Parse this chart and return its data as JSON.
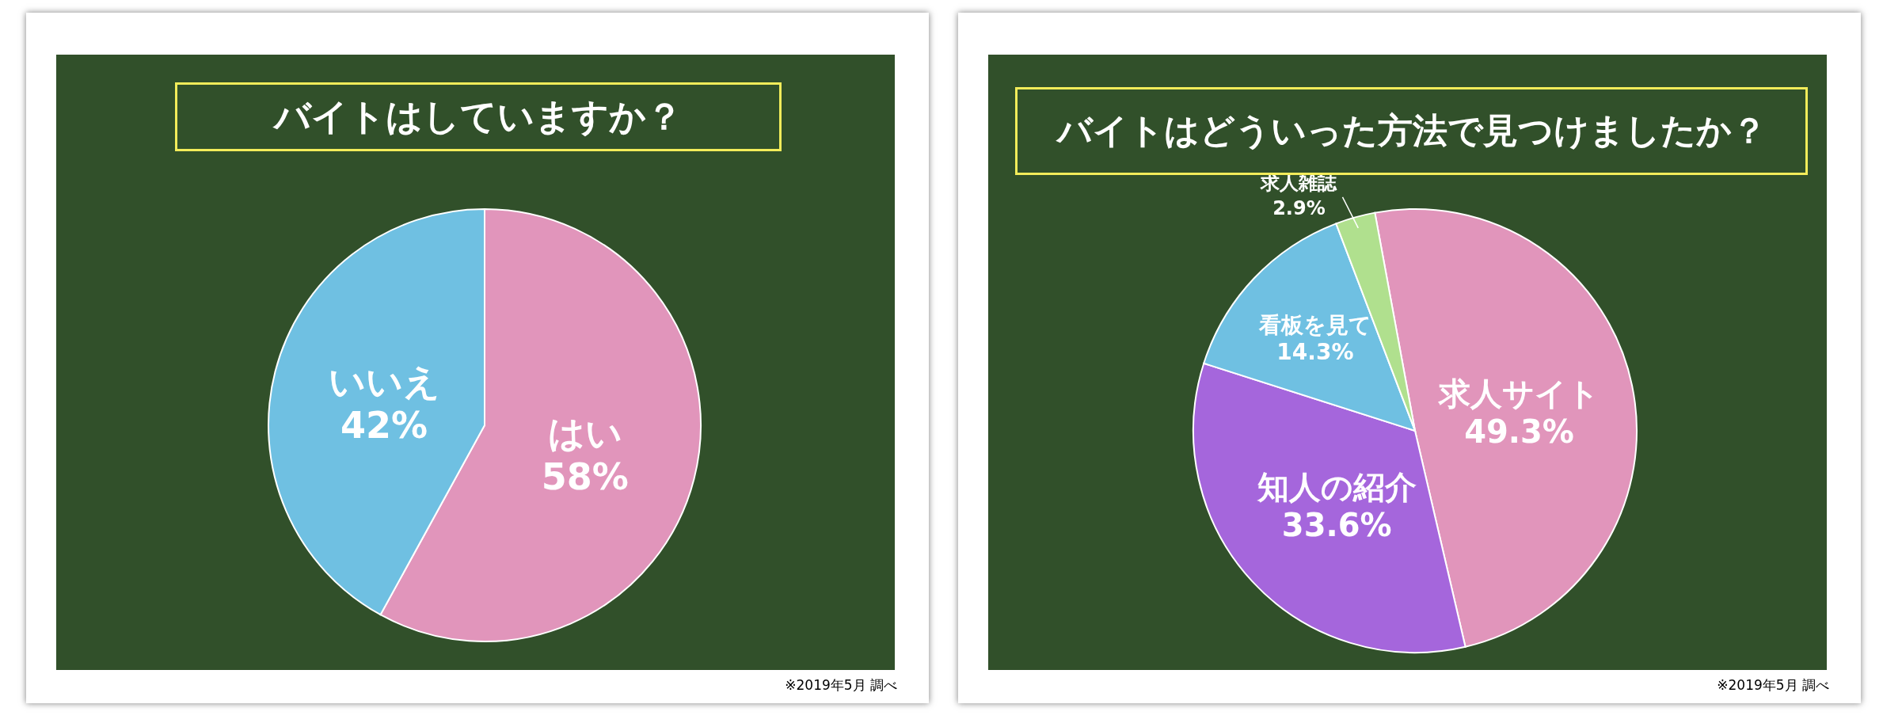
{
  "chart_data": [
    {
      "type": "pie",
      "title": "バイトはしていますか？",
      "categories": [
        "はい",
        "いいえ"
      ],
      "values": [
        58,
        42
      ],
      "colors": [
        "#e195bb",
        "#6fc0e2"
      ],
      "value_labels": [
        "58%",
        "42%"
      ],
      "annotations": [
        "※2019年5月 調べ"
      ]
    },
    {
      "type": "pie",
      "title": "バイトはどういった方法で見つけましたか？",
      "categories": [
        "求人サイト",
        "知人の紹介",
        "看板を見て",
        "求人雑誌"
      ],
      "values": [
        49.3,
        33.6,
        14.3,
        2.9
      ],
      "colors": [
        "#e195bb",
        "#a566dc",
        "#6fc0e2",
        "#b0e08e"
      ],
      "value_labels": [
        "49.3%",
        "33.6%",
        "14.3%",
        "2.9%"
      ],
      "annotations": [
        "※2019年5月 調べ"
      ]
    }
  ]
}
